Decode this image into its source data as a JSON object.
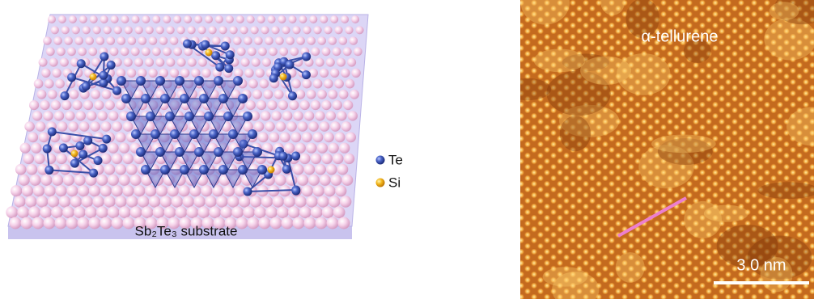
{
  "left_panel": {
    "substrate_label": "Sb₂Te₃ substrate",
    "legend": [
      {
        "label": "Te",
        "color": "#3b55b8"
      },
      {
        "label": "Si",
        "color": "#f2c21b"
      }
    ]
  },
  "right_panel": {
    "label": "α-tellurene",
    "scale_bar": "3.0 nm"
  }
}
